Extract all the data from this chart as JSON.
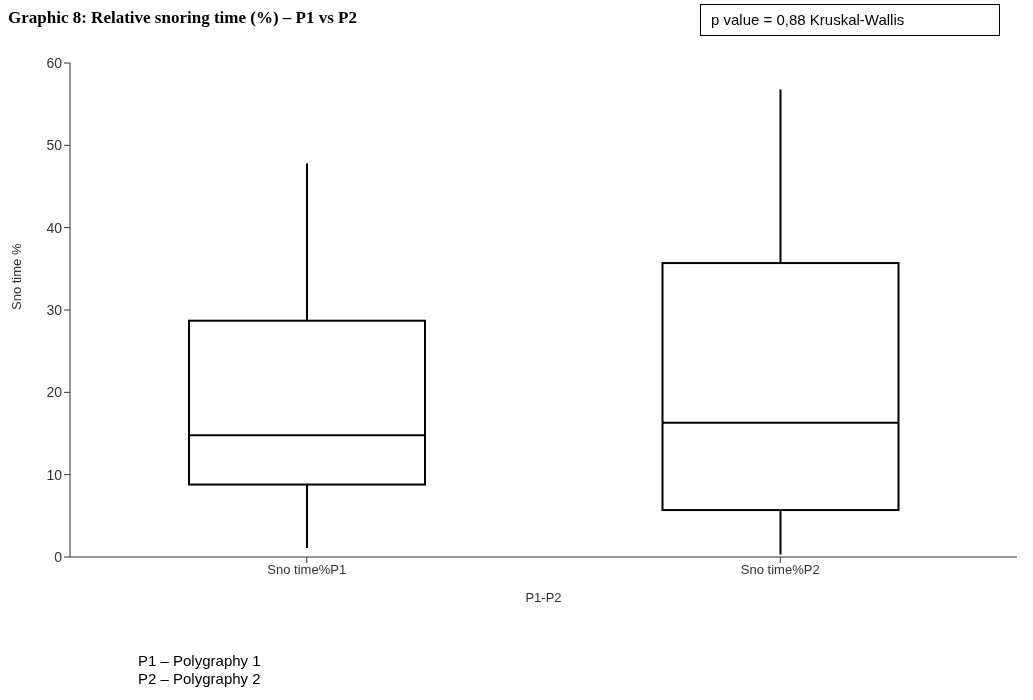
{
  "chart_data": {
    "type": "box",
    "title": "Graphic  8: Relative snoring time (%) – P1 vs P2",
    "xlabel": "P1-P2",
    "ylabel": "Sno time %",
    "categories": [
      "Sno time%P1",
      "Sno time%P2"
    ],
    "boxes": [
      {
        "low": 1.1,
        "q1": 8.8,
        "median": 14.8,
        "q3": 28.7,
        "high": 47.8
      },
      {
        "low": 0.3,
        "q1": 5.7,
        "median": 16.3,
        "q3": 35.7,
        "high": 56.8
      }
    ],
    "color": "#000000",
    "ylim": [
      0,
      60
    ],
    "yticks": [
      0,
      10,
      20,
      30,
      40,
      50,
      60
    ],
    "annotations": [
      "p value = 0,88 Kruskal-Wallis",
      "P1 – Polygraphy 1",
      "P2 – Polygraphy 2"
    ]
  }
}
